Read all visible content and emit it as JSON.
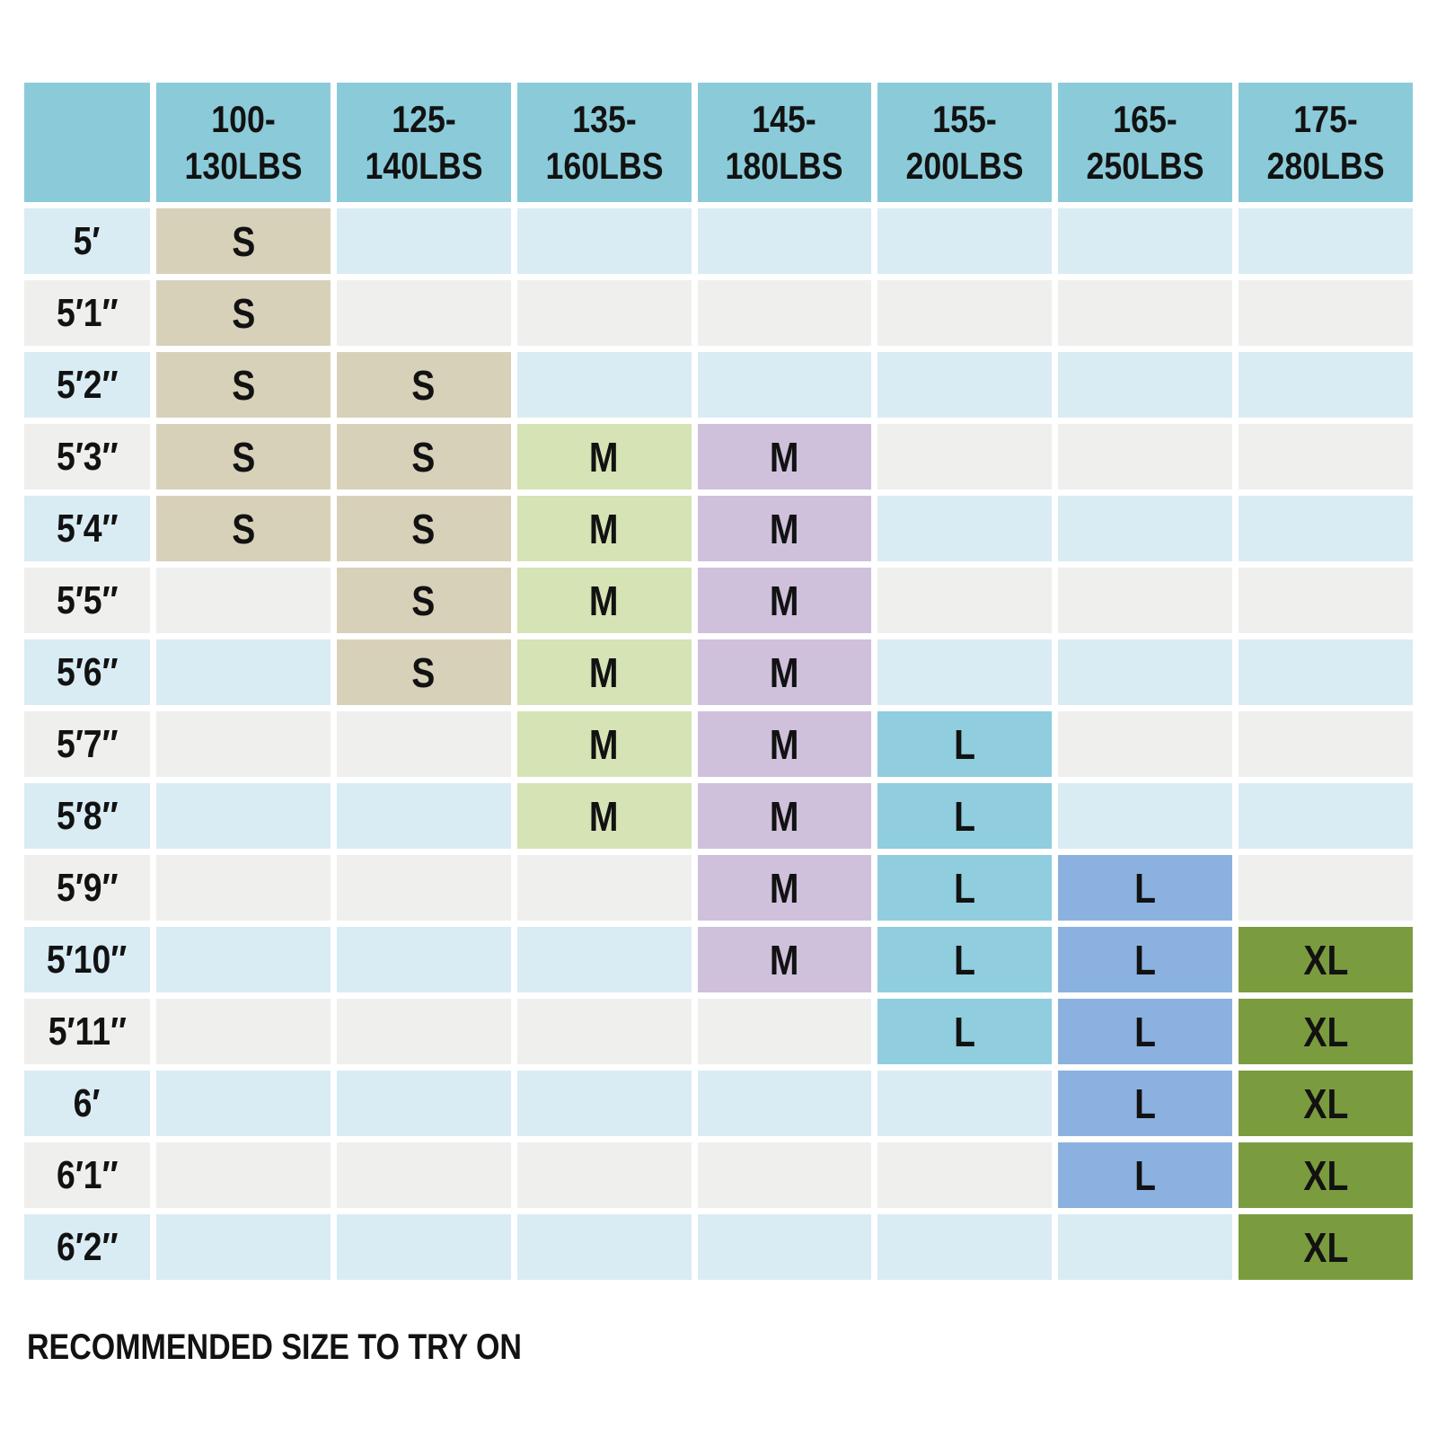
{
  "colors": {
    "header_bg": "#8bcbd9",
    "row_blue": "#d9ecf4",
    "row_gray": "#efefed",
    "size_s": "#d8d1ba",
    "size_m_green": "#d5e3b5",
    "size_m_purple": "#cfc0dc",
    "size_l_teal": "#90cdde",
    "size_l_blue": "#8bb1e0",
    "size_xl": "#7a9c3e",
    "text": "#121212"
  },
  "chart_data": {
    "type": "table",
    "caption": "RECOMMENDED SIZE TO TRY ON",
    "columns": [
      "100-130LBS",
      "125-140LBS",
      "135-160LBS",
      "145-180LBS",
      "155-200LBS",
      "165-250LBS",
      "175-280LBS"
    ],
    "column_labels_two_line": [
      [
        "100-",
        "130LBS"
      ],
      [
        "125-",
        "140LBS"
      ],
      [
        "135-",
        "160LBS"
      ],
      [
        "145-",
        "180LBS"
      ],
      [
        "155-",
        "200LBS"
      ],
      [
        "165-",
        "250LBS"
      ],
      [
        "175-",
        "280LBS"
      ]
    ],
    "rows": [
      {
        "height": "5′",
        "cells": [
          {
            "size": "S",
            "variant": "s"
          },
          null,
          null,
          null,
          null,
          null,
          null
        ]
      },
      {
        "height": "5′1″",
        "cells": [
          {
            "size": "S",
            "variant": "s"
          },
          null,
          null,
          null,
          null,
          null,
          null
        ]
      },
      {
        "height": "5′2″",
        "cells": [
          {
            "size": "S",
            "variant": "s"
          },
          {
            "size": "S",
            "variant": "s"
          },
          null,
          null,
          null,
          null,
          null
        ]
      },
      {
        "height": "5′3″",
        "cells": [
          {
            "size": "S",
            "variant": "s"
          },
          {
            "size": "S",
            "variant": "s"
          },
          {
            "size": "M",
            "variant": "m-green"
          },
          {
            "size": "M",
            "variant": "m-purple"
          },
          null,
          null,
          null
        ]
      },
      {
        "height": "5′4″",
        "cells": [
          {
            "size": "S",
            "variant": "s"
          },
          {
            "size": "S",
            "variant": "s"
          },
          {
            "size": "M",
            "variant": "m-green"
          },
          {
            "size": "M",
            "variant": "m-purple"
          },
          null,
          null,
          null
        ]
      },
      {
        "height": "5′5″",
        "cells": [
          null,
          {
            "size": "S",
            "variant": "s"
          },
          {
            "size": "M",
            "variant": "m-green"
          },
          {
            "size": "M",
            "variant": "m-purple"
          },
          null,
          null,
          null
        ]
      },
      {
        "height": "5′6″",
        "cells": [
          null,
          {
            "size": "S",
            "variant": "s"
          },
          {
            "size": "M",
            "variant": "m-green"
          },
          {
            "size": "M",
            "variant": "m-purple"
          },
          null,
          null,
          null
        ]
      },
      {
        "height": "5′7″",
        "cells": [
          null,
          null,
          {
            "size": "M",
            "variant": "m-green"
          },
          {
            "size": "M",
            "variant": "m-purple"
          },
          {
            "size": "L",
            "variant": "l-teal"
          },
          null,
          null
        ]
      },
      {
        "height": "5′8″",
        "cells": [
          null,
          null,
          {
            "size": "M",
            "variant": "m-green"
          },
          {
            "size": "M",
            "variant": "m-purple"
          },
          {
            "size": "L",
            "variant": "l-teal"
          },
          null,
          null
        ]
      },
      {
        "height": "5′9″",
        "cells": [
          null,
          null,
          null,
          {
            "size": "M",
            "variant": "m-purple"
          },
          {
            "size": "L",
            "variant": "l-teal"
          },
          {
            "size": "L",
            "variant": "l-blue"
          },
          null
        ]
      },
      {
        "height": "5′10″",
        "cells": [
          null,
          null,
          null,
          {
            "size": "M",
            "variant": "m-purple"
          },
          {
            "size": "L",
            "variant": "l-teal"
          },
          {
            "size": "L",
            "variant": "l-blue"
          },
          {
            "size": "XL",
            "variant": "xl"
          }
        ]
      },
      {
        "height": "5′11″",
        "cells": [
          null,
          null,
          null,
          null,
          {
            "size": "L",
            "variant": "l-teal"
          },
          {
            "size": "L",
            "variant": "l-blue"
          },
          {
            "size": "XL",
            "variant": "xl"
          }
        ]
      },
      {
        "height": "6′",
        "cells": [
          null,
          null,
          null,
          null,
          null,
          {
            "size": "L",
            "variant": "l-blue"
          },
          {
            "size": "XL",
            "variant": "xl"
          }
        ]
      },
      {
        "height": "6′1″",
        "cells": [
          null,
          null,
          null,
          null,
          null,
          {
            "size": "L",
            "variant": "l-blue"
          },
          {
            "size": "XL",
            "variant": "xl"
          }
        ]
      },
      {
        "height": "6′2″",
        "cells": [
          null,
          null,
          null,
          null,
          null,
          null,
          {
            "size": "XL",
            "variant": "xl"
          }
        ]
      }
    ]
  }
}
